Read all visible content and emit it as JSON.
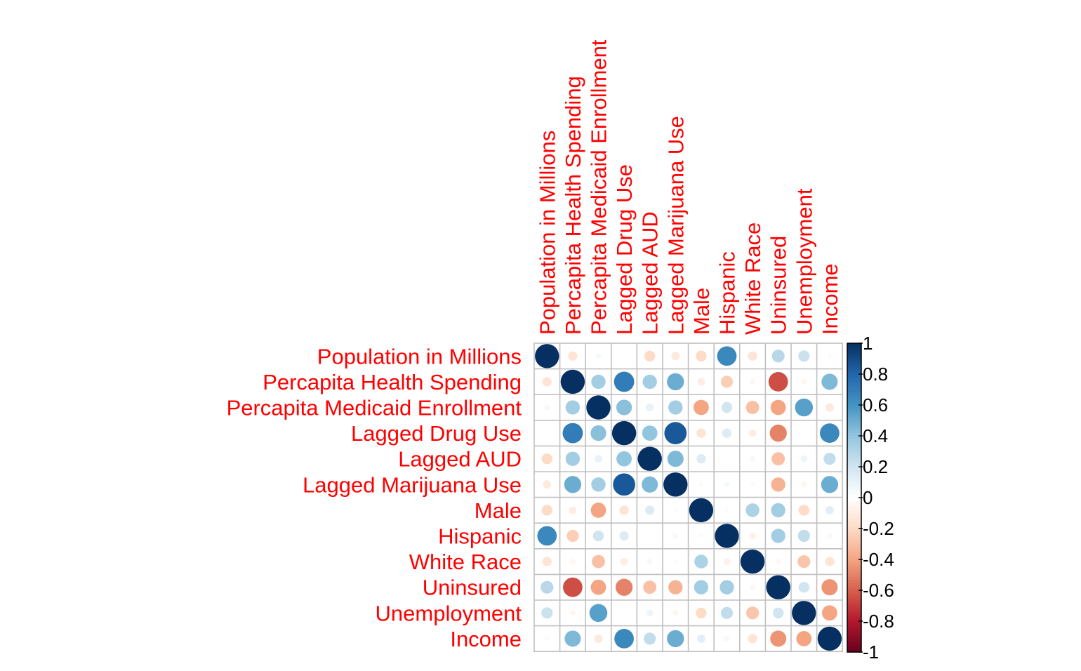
{
  "chart_data": {
    "type": "heatmap",
    "style": "corrplot-circle",
    "title": "",
    "label_color": "#ff0000",
    "grid_color": "#c0c0c0",
    "variables": [
      "Population in Millions",
      "Percapita Health Spending",
      "Percapita Medicaid Enrollment",
      "Lagged Drug Use",
      "Lagged AUD",
      "Lagged Marijuana Use",
      "Male",
      "Hispanic",
      "White Race",
      "Uninsured",
      "Unemployment",
      "Income"
    ],
    "matrix": [
      [
        1.0,
        -0.15,
        0.05,
        0.0,
        -0.2,
        -0.12,
        -0.2,
        0.65,
        -0.15,
        0.28,
        0.22,
        0.03
      ],
      [
        -0.15,
        1.0,
        0.35,
        0.7,
        0.35,
        0.5,
        -0.1,
        -0.25,
        -0.05,
        -0.65,
        -0.05,
        0.45
      ],
      [
        0.05,
        0.35,
        1.0,
        0.42,
        0.1,
        0.35,
        -0.4,
        0.2,
        -0.3,
        -0.4,
        0.55,
        -0.12
      ],
      [
        0.0,
        0.7,
        0.42,
        1.0,
        0.4,
        0.85,
        -0.15,
        0.15,
        -0.1,
        -0.5,
        0.0,
        0.65
      ],
      [
        -0.2,
        0.35,
        0.1,
        0.4,
        1.0,
        0.45,
        0.15,
        0.0,
        0.05,
        -0.3,
        0.08,
        0.25
      ],
      [
        -0.12,
        0.5,
        0.35,
        0.85,
        0.45,
        1.0,
        0.03,
        0.05,
        0.03,
        -0.35,
        -0.05,
        0.5
      ],
      [
        -0.2,
        -0.1,
        -0.4,
        -0.15,
        0.15,
        0.03,
        1.0,
        0.03,
        0.32,
        0.35,
        -0.2,
        0.12
      ],
      [
        0.65,
        -0.25,
        0.2,
        0.15,
        0.0,
        0.05,
        0.03,
        1.0,
        -0.08,
        0.35,
        0.25,
        0.05
      ],
      [
        -0.15,
        -0.05,
        -0.3,
        -0.1,
        0.05,
        0.03,
        0.32,
        -0.08,
        1.0,
        -0.05,
        -0.28,
        -0.15
      ],
      [
        0.28,
        -0.65,
        -0.4,
        -0.5,
        -0.3,
        -0.35,
        0.35,
        0.35,
        -0.05,
        1.0,
        0.2,
        -0.45
      ],
      [
        0.22,
        -0.05,
        0.55,
        0.0,
        0.08,
        -0.05,
        -0.2,
        0.25,
        -0.28,
        0.2,
        1.0,
        -0.4
      ],
      [
        0.03,
        0.45,
        -0.12,
        0.65,
        0.25,
        0.5,
        0.12,
        0.05,
        -0.15,
        -0.45,
        -0.4,
        1.0
      ]
    ],
    "colorbar": {
      "range": [
        -1,
        1
      ],
      "ticks": [
        "1",
        "0.8",
        "0.6",
        "0.4",
        "0.2",
        "0",
        "-0.2",
        "-0.4",
        "-0.6",
        "-0.8",
        "-1"
      ],
      "palette_from_low_to_high": [
        "#67001f",
        "#b2182b",
        "#d6604d",
        "#f4a582",
        "#fddbc7",
        "#ffffff",
        "#d1e5f0",
        "#92c5de",
        "#4393c3",
        "#2166ac",
        "#053061"
      ]
    }
  }
}
